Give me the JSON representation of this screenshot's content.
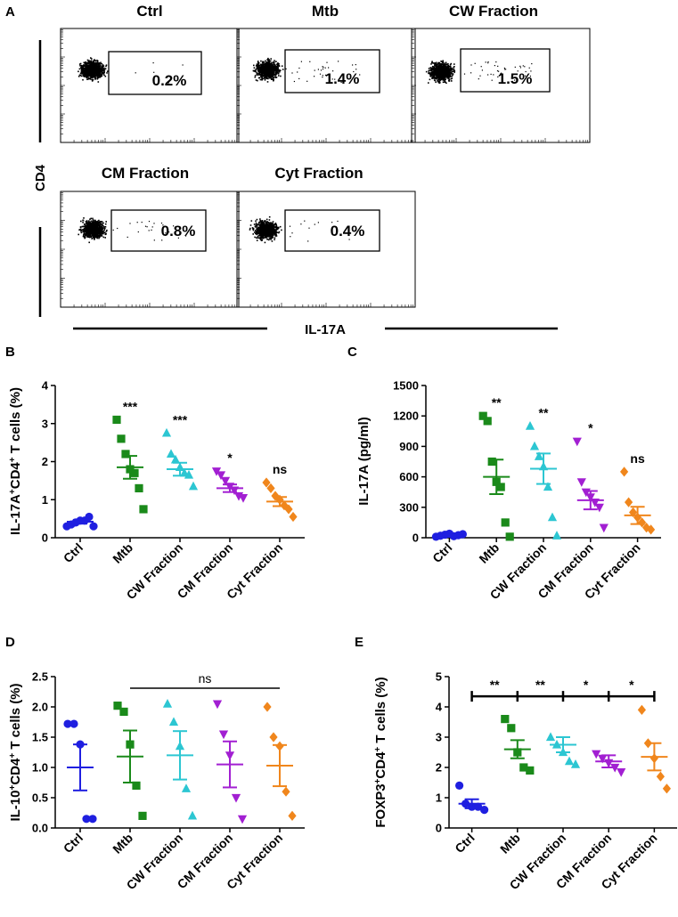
{
  "panel_a": {
    "letter": "A",
    "y_axis_label": "CD4",
    "x_axis_label": "IL-17A",
    "plots": [
      {
        "title": "Ctrl",
        "gate_value": "0.2%",
        "spread": 0.1
      },
      {
        "title": "Mtb",
        "gate_value": "1.4%",
        "spread": 0.7
      },
      {
        "title": "CW Fraction",
        "gate_value": "1.5%",
        "spread": 0.8
      },
      {
        "title": "CM Fraction",
        "gate_value": "0.8%",
        "spread": 0.45
      },
      {
        "title": "Cyt Fraction",
        "gate_value": "0.4%",
        "spread": 0.25
      }
    ]
  },
  "chart_data": [
    {
      "panel": "B",
      "type": "scatter",
      "ylabel": "IL-17A+CD4+ T cells (%)",
      "ylabel_parts": [
        "IL-17A",
        "+",
        "CD4",
        "+",
        " T cells (%)"
      ],
      "ylim": [
        0,
        4
      ],
      "yticks": [
        0,
        1,
        2,
        3,
        4
      ],
      "tick_labels": [
        "0",
        "1",
        "2",
        "3",
        "4"
      ],
      "categories": [
        "Ctrl",
        "Mtb",
        "CW Fraction",
        "CM Fraction",
        "Cyt Fraction"
      ],
      "markers": [
        "circle",
        "square",
        "triangle-up",
        "triangle-down",
        "diamond"
      ],
      "colors": [
        "#1f1fe0",
        "#1a8a1a",
        "#2cc6d2",
        "#a21fd2",
        "#f0861c"
      ],
      "points": [
        [
          0.3,
          0.35,
          0.4,
          0.45,
          0.45,
          0.55,
          0.3
        ],
        [
          3.1,
          2.6,
          2.2,
          1.8,
          1.7,
          1.3,
          0.75
        ],
        [
          2.75,
          2.2,
          2.05,
          1.85,
          1.7,
          1.65,
          1.35
        ],
        [
          1.75,
          1.65,
          1.5,
          1.35,
          1.25,
          1.1,
          1.05
        ],
        [
          1.45,
          1.3,
          1.1,
          1.0,
          0.85,
          0.75,
          0.55
        ]
      ],
      "mean": [
        0.42,
        1.85,
        1.8,
        1.3,
        0.95
      ],
      "sem": [
        0.05,
        0.3,
        0.17,
        0.1,
        0.12
      ],
      "significance": [
        "",
        "***",
        "***",
        "*",
        "ns"
      ]
    },
    {
      "panel": "C",
      "type": "scatter",
      "ylabel": "IL-17A (pg/ml)",
      "ylabel_parts": [
        "IL-17A (pg/ml)"
      ],
      "ylim": [
        0,
        1500
      ],
      "yticks": [
        0,
        300,
        600,
        900,
        1200,
        1500
      ],
      "tick_labels": [
        "0",
        "300",
        "600",
        "900",
        "1200",
        "1500"
      ],
      "categories": [
        "Ctrl",
        "Mtb",
        "CW Fraction",
        "CM Fraction",
        "Cyt Fraction"
      ],
      "markers": [
        "circle",
        "square",
        "triangle-up",
        "triangle-down",
        "diamond"
      ],
      "colors": [
        "#1f1fe0",
        "#1a8a1a",
        "#2cc6d2",
        "#a21fd2",
        "#f0861c"
      ],
      "points": [
        [
          10,
          20,
          30,
          40,
          15,
          25,
          35
        ],
        [
          1200,
          1150,
          750,
          550,
          500,
          150,
          10
        ],
        [
          1100,
          900,
          800,
          700,
          500,
          200,
          20
        ],
        [
          950,
          550,
          450,
          400,
          350,
          300,
          100
        ],
        [
          650,
          350,
          250,
          200,
          150,
          100,
          80
        ]
      ],
      "mean": [
        25,
        600,
        680,
        370,
        220
      ],
      "sem": [
        8,
        170,
        150,
        90,
        85
      ],
      "significance": [
        "",
        "**",
        "**",
        "*",
        "ns"
      ]
    },
    {
      "panel": "D",
      "type": "scatter",
      "ylabel": "IL-10+CD4+ T cells (%)",
      "ylabel_parts": [
        "IL-10",
        "+",
        "CD4",
        "+",
        " T cells (%)"
      ],
      "ylim": [
        0,
        2.5
      ],
      "yticks": [
        0,
        0.5,
        1.0,
        1.5,
        2.0,
        2.5
      ],
      "tick_labels": [
        "0.0",
        "0.5",
        "1.0",
        "1.5",
        "2.0",
        "2.5"
      ],
      "categories": [
        "Ctrl",
        "Mtb",
        "CW Fraction",
        "CM Fraction",
        "Cyt Fraction"
      ],
      "markers": [
        "circle",
        "square",
        "triangle-up",
        "triangle-down",
        "diamond"
      ],
      "colors": [
        "#1f1fe0",
        "#1a8a1a",
        "#2cc6d2",
        "#a21fd2",
        "#f0861c"
      ],
      "points": [
        [
          1.72,
          1.72,
          1.38,
          0.15,
          0.15
        ],
        [
          2.02,
          1.92,
          1.38,
          0.7,
          0.2
        ],
        [
          2.05,
          1.75,
          1.35,
          0.65,
          0.2
        ],
        [
          2.05,
          1.55,
          1.2,
          0.5,
          0.15
        ],
        [
          2.0,
          1.5,
          1.35,
          0.6,
          0.2
        ]
      ],
      "mean": [
        1.0,
        1.18,
        1.2,
        1.05,
        1.03
      ],
      "sem": [
        0.38,
        0.43,
        0.4,
        0.38,
        0.34
      ],
      "significance": [],
      "bracket": {
        "label": "ns",
        "from": "Mtb",
        "to": "Cyt Fraction"
      }
    },
    {
      "panel": "E",
      "type": "scatter",
      "ylabel": "FOXP3+CD4+ T cells (%)",
      "ylabel_parts": [
        "FOXP3",
        "+",
        "CD4",
        "+",
        " T cells (%)"
      ],
      "ylim": [
        0,
        5
      ],
      "yticks": [
        0,
        1,
        2,
        3,
        4,
        5
      ],
      "tick_labels": [
        "0",
        "1",
        "2",
        "3",
        "4",
        "5"
      ],
      "categories": [
        "Ctrl",
        "Mtb",
        "CW Fraction",
        "CM Fraction",
        "Cyt Fraction"
      ],
      "markers": [
        "circle",
        "square",
        "triangle-up",
        "triangle-down",
        "diamond"
      ],
      "colors": [
        "#1f1fe0",
        "#1a8a1a",
        "#2cc6d2",
        "#a21fd2",
        "#f0861c"
      ],
      "points": [
        [
          1.4,
          0.8,
          0.7,
          0.7,
          0.6
        ],
        [
          3.6,
          3.3,
          2.5,
          2.0,
          1.9
        ],
        [
          3.0,
          2.75,
          2.5,
          2.2,
          2.1
        ],
        [
          2.45,
          2.3,
          2.15,
          2.0,
          1.85
        ],
        [
          3.9,
          2.8,
          2.3,
          1.7,
          1.3
        ]
      ],
      "mean": [
        0.8,
        2.6,
        2.75,
        2.2,
        2.35
      ],
      "sem": [
        0.15,
        0.3,
        0.25,
        0.2,
        0.45
      ],
      "significance": [],
      "bracket_line": {
        "from": "Ctrl",
        "to": "Cyt Fraction",
        "value": 4.35
      },
      "pair_labels": [
        "**",
        "**",
        "*",
        "*"
      ]
    }
  ],
  "panel_letters": [
    "B",
    "C",
    "D",
    "E"
  ]
}
